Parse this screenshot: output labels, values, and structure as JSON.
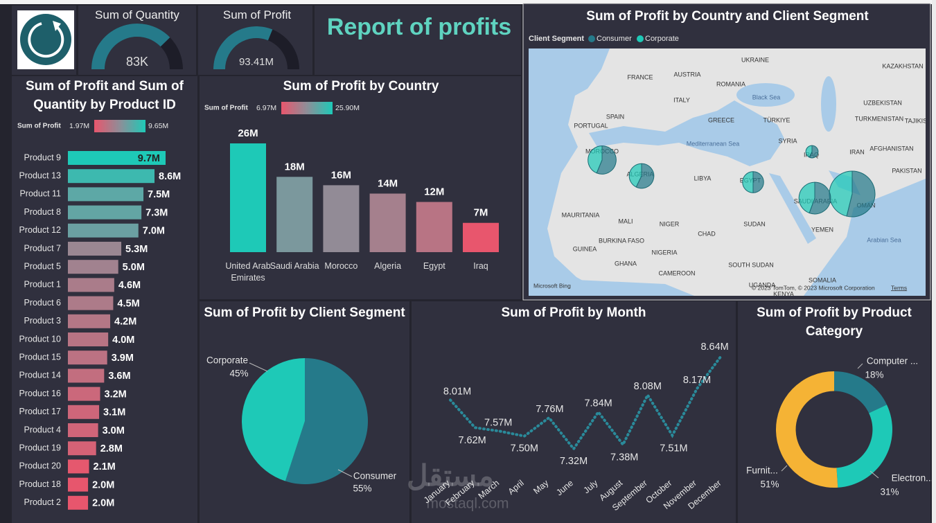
{
  "header": {
    "title": "Report of profits"
  },
  "watermark": [
    "مستقل",
    "mostaql.com"
  ],
  "chart_data": [
    {
      "type": "gauge",
      "title": "Sum of Quantity",
      "value": 83,
      "value_label": "83K",
      "ylim": [
        0,
        110
      ],
      "color": "#257a8a"
    },
    {
      "type": "gauge",
      "title": "Sum of Profit",
      "value": 93.41,
      "value_label": "93.41M",
      "ylim": [
        0,
        150
      ],
      "color": "#257a8a"
    },
    {
      "type": "bar",
      "orientation": "horizontal",
      "title": "Sum of Profit and Sum of Quantity by Product ID",
      "color_scale": {
        "title": "Sum of Profit",
        "range": [
          {
            "value": 1.97,
            "label": "1.97M"
          },
          {
            "value": 9.65,
            "label": "9.65M"
          }
        ],
        "colors": [
          "#e8566d",
          "#8e8e98",
          "#1ec9b7"
        ]
      },
      "categories": [
        "Product 9",
        "Product 13",
        "Product 11",
        "Product 8",
        "Product 12",
        "Product 7",
        "Product 5",
        "Product 1",
        "Product 6",
        "Product 3",
        "Product 10",
        "Product 15",
        "Product 14",
        "Product 16",
        "Product 17",
        "Product 4",
        "Product 19",
        "Product 20",
        "Product 18",
        "Product 2"
      ],
      "values": [
        9.7,
        8.6,
        7.5,
        7.3,
        7.0,
        5.3,
        5.0,
        4.6,
        4.5,
        4.2,
        4.0,
        3.9,
        3.6,
        3.2,
        3.1,
        3.0,
        2.8,
        2.1,
        2.0,
        2.0
      ],
      "value_labels": [
        "9.7M",
        "8.6M",
        "7.5M",
        "7.3M",
        "7.0M",
        "5.3M",
        "5.0M",
        "4.6M",
        "4.5M",
        "4.2M",
        "4.0M",
        "3.9M",
        "3.6M",
        "3.2M",
        "3.1M",
        "3.0M",
        "2.8M",
        "2.1M",
        "2.0M",
        "2.0M"
      ]
    },
    {
      "type": "bar",
      "orientation": "vertical",
      "title": "Sum of Profit by Country",
      "color_scale": {
        "title": "Sum of Profit",
        "range": [
          {
            "value": 6.97,
            "label": "6.97M"
          },
          {
            "value": 25.9,
            "label": "25.90M"
          }
        ],
        "colors": [
          "#e8566d",
          "#8e8e98",
          "#1ec9b7"
        ]
      },
      "categories": [
        "United Arab Emirates",
        "Saudi Arabia",
        "Morocco",
        "Algeria",
        "Egypt",
        "Iraq"
      ],
      "values": [
        26,
        18,
        16,
        14,
        12,
        7
      ],
      "value_labels": [
        "26M",
        "18M",
        "16M",
        "14M",
        "12M",
        "7M"
      ]
    },
    {
      "type": "pie",
      "title": "Sum of Profit by Client Segment",
      "hole": 0,
      "categories": [
        "Consumer",
        "Corporate"
      ],
      "values": [
        55,
        45
      ],
      "value_labels": [
        "55%",
        "45%"
      ],
      "colors": [
        "#257a8a",
        "#1ec9b7"
      ]
    },
    {
      "type": "line",
      "title": "Sum of Profit by Month",
      "color": "#2a8a9a",
      "categories": [
        "January",
        "February",
        "March",
        "April",
        "May",
        "June",
        "July",
        "August",
        "September",
        "October",
        "November",
        "December"
      ],
      "values": [
        8.01,
        7.62,
        7.57,
        7.5,
        7.76,
        7.32,
        7.84,
        7.38,
        8.08,
        7.51,
        8.17,
        8.64
      ],
      "value_labels": [
        "8.01M",
        "7.62M",
        "7.57M",
        "7.50M",
        "7.76M",
        "7.32M",
        "7.84M",
        "7.38M",
        "8.08M",
        "7.51M",
        "8.17M",
        "8.64M"
      ]
    },
    {
      "type": "pie",
      "title": "Sum of Profit by Product Category",
      "hole": 0.66,
      "categories": [
        "Computer ...",
        "Electron...",
        "Furnit..."
      ],
      "values": [
        18,
        31,
        51
      ],
      "value_labels": [
        "18%",
        "31%",
        "51%"
      ],
      "colors": [
        "#257a8a",
        "#1ec9b7",
        "#f5b335"
      ]
    },
    {
      "type": "map",
      "title": "Sum of Profit by Country and Client Segment",
      "legend_title": "Client Segment",
      "categories": [
        "United Arab Emirates",
        "Saudi Arabia",
        "Morocco",
        "Algeria",
        "Egypt",
        "Iraq"
      ],
      "series": [
        {
          "name": "Consumer",
          "color": "#257a8a",
          "values": [
            14,
            10,
            9,
            8,
            6,
            4
          ]
        },
        {
          "name": "Corporate",
          "color": "#1ec9b7",
          "values": [
            12,
            8,
            7,
            6,
            6,
            3
          ]
        }
      ],
      "place_labels": [
        "UKRAINE",
        "KAZAKHSTAN",
        "FRANCE",
        "AUSTRIA",
        "ROMANIA",
        "UZBEKISTAN",
        "ITALY",
        "TURKMENISTAN",
        "TAJIKIS",
        "SPAIN",
        "GREECE",
        "TÜRKIYE",
        "PORTUGAL",
        "SYRIA",
        "AFGHANISTAN",
        "MOROCCO",
        "IRAQ",
        "IRAN",
        "ALGERIA",
        "LIBYA",
        "EGYPT",
        "PAKISTAN",
        "SAUDI ARABIA",
        "OMAN",
        "MAURITANIA",
        "MALI",
        "NIGER",
        "CHAD",
        "SUDAN",
        "YEMEN",
        "BURKINA FASO",
        "GUINEA",
        "NIGERIA",
        "GHANA",
        "SOUTH SUDAN",
        "CAMEROON",
        "SOMALIA",
        "UGANDA",
        "KENYA"
      ],
      "sea_labels": [
        "Black Sea",
        "Mediterranean Sea",
        "Arabian Sea"
      ],
      "attribution": [
        "Microsoft Bing",
        "© 2023 TomTom, © 2023 Microsoft Corporation",
        "Terms"
      ]
    }
  ]
}
